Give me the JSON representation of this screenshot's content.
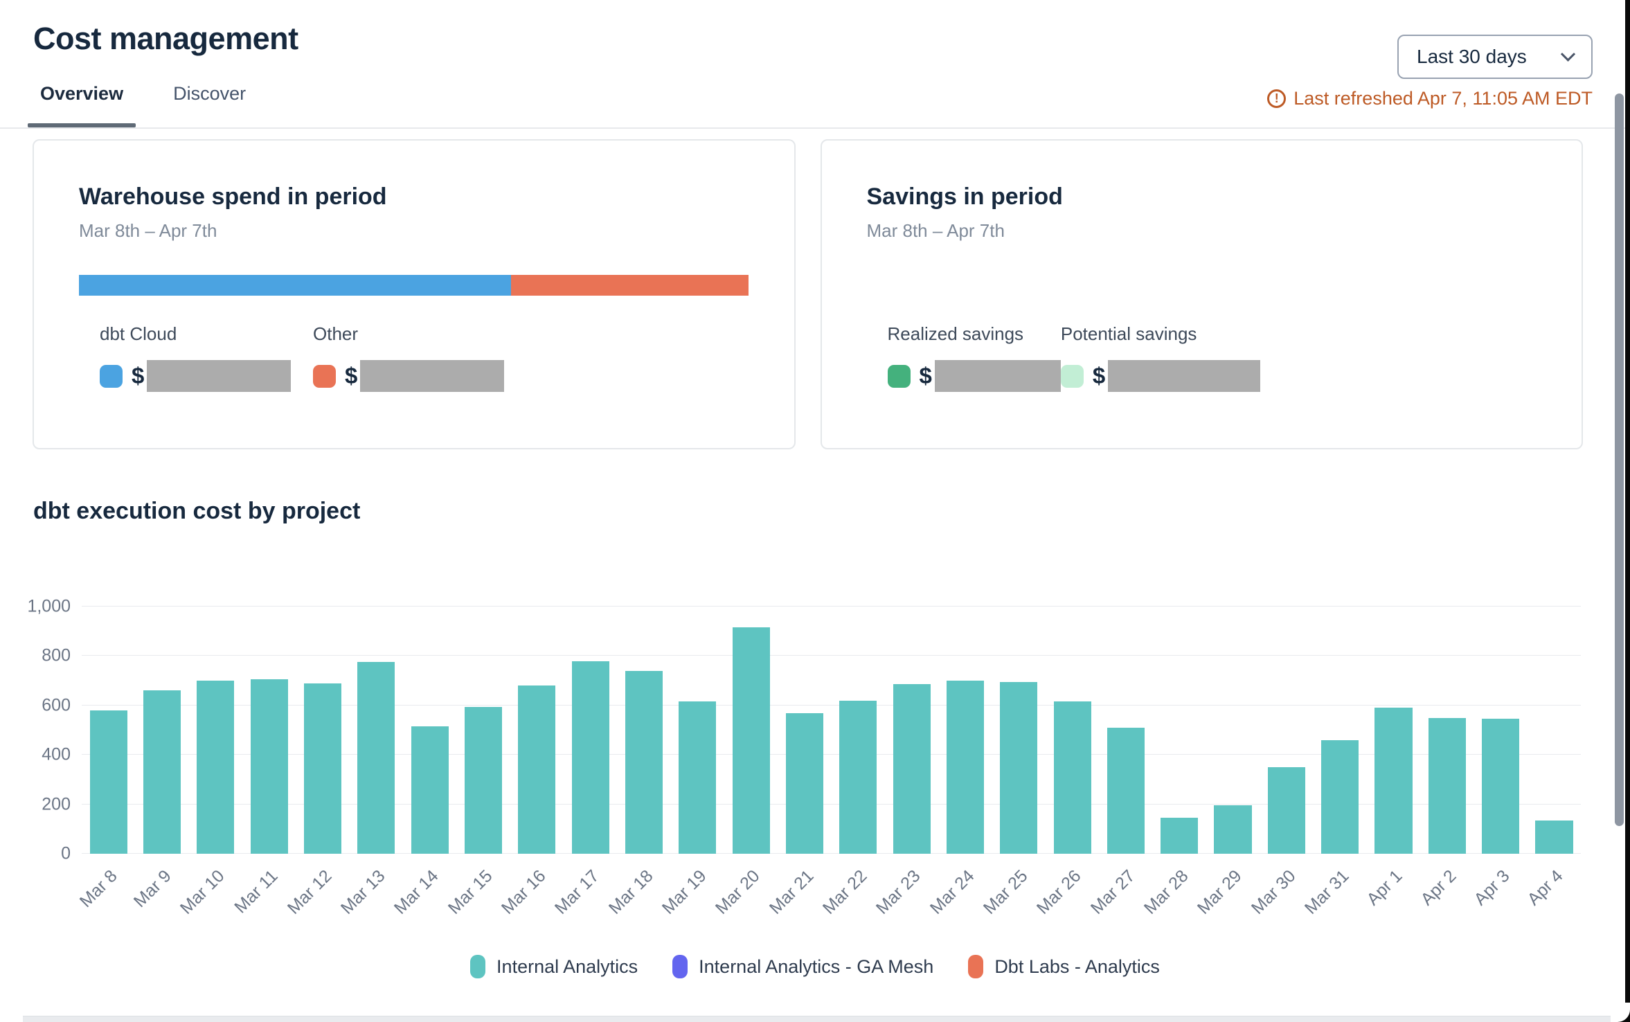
{
  "page": {
    "title": "Cost management"
  },
  "tabs": [
    {
      "label": "Overview",
      "active": true
    },
    {
      "label": "Discover",
      "active": false
    }
  ],
  "controls": {
    "date_range_value": "Last 30 days",
    "chevron_icon": "chevron-down",
    "last_refreshed": "Last refreshed Apr 7, 11:05 AM EDT",
    "warning_icon_glyph": "!"
  },
  "cards": {
    "warehouse": {
      "title": "Warehouse spend in period",
      "subtitle": "Mar 8th – Apr 7th",
      "bar_segments": [
        {
          "label": "dbt Cloud",
          "color": "#4ba3e1",
          "width_pct": 64.5
        },
        {
          "label": "Other",
          "color": "#e97355",
          "width_pct": 35.5
        }
      ],
      "legend": [
        {
          "label": "dbt Cloud",
          "color": "#4ba3e1",
          "currency": "$",
          "redacted": true
        },
        {
          "label": "Other",
          "color": "#e97355",
          "currency": "$",
          "redacted": true
        }
      ]
    },
    "savings": {
      "title": "Savings in period",
      "subtitle": "Mar 8th – Apr 7th",
      "legend": [
        {
          "label": "Realized savings",
          "color": "#44b17d",
          "currency": "$",
          "redacted": true
        },
        {
          "label": "Potential savings",
          "color": "#c2eed5",
          "currency": "$",
          "redacted": true
        }
      ]
    }
  },
  "chart_data": {
    "type": "bar",
    "title": "dbt execution cost by project",
    "categories": [
      "Mar 8",
      "Mar 9",
      "Mar 10",
      "Mar 11",
      "Mar 12",
      "Mar 13",
      "Mar 14",
      "Mar 15",
      "Mar 16",
      "Mar 17",
      "Mar 18",
      "Mar 19",
      "Mar 20",
      "Mar 21",
      "Mar 22",
      "Mar 23",
      "Mar 24",
      "Mar 25",
      "Mar 26",
      "Mar 27",
      "Mar 28",
      "Mar 29",
      "Mar 30",
      "Mar 31",
      "Apr 1",
      "Apr 2",
      "Apr 3",
      "Apr 4"
    ],
    "series": [
      {
        "name": "Internal Analytics",
        "color": "#5ec4c1",
        "values": [
          580,
          660,
          700,
          705,
          690,
          775,
          515,
          595,
          680,
          780,
          740,
          615,
          915,
          570,
          620,
          685,
          700,
          695,
          615,
          510,
          145,
          195,
          350,
          460,
          590,
          550,
          545,
          135
        ]
      }
    ],
    "legend": [
      {
        "label": "Internal Analytics",
        "color": "#5ec4c1"
      },
      {
        "label": "Internal Analytics - GA Mesh",
        "color": "#6365ef"
      },
      {
        "label": "Dbt Labs - Analytics",
        "color": "#e97355"
      }
    ],
    "xlabel": "",
    "ylabel": "",
    "ylim": [
      0,
      1000
    ],
    "yticks": [
      0,
      200,
      400,
      600,
      800,
      1000
    ],
    "grid": true,
    "legend_position": "bottom"
  },
  "colors": {
    "redaction": "#acacac",
    "accent_warning": "#bd5a25"
  }
}
